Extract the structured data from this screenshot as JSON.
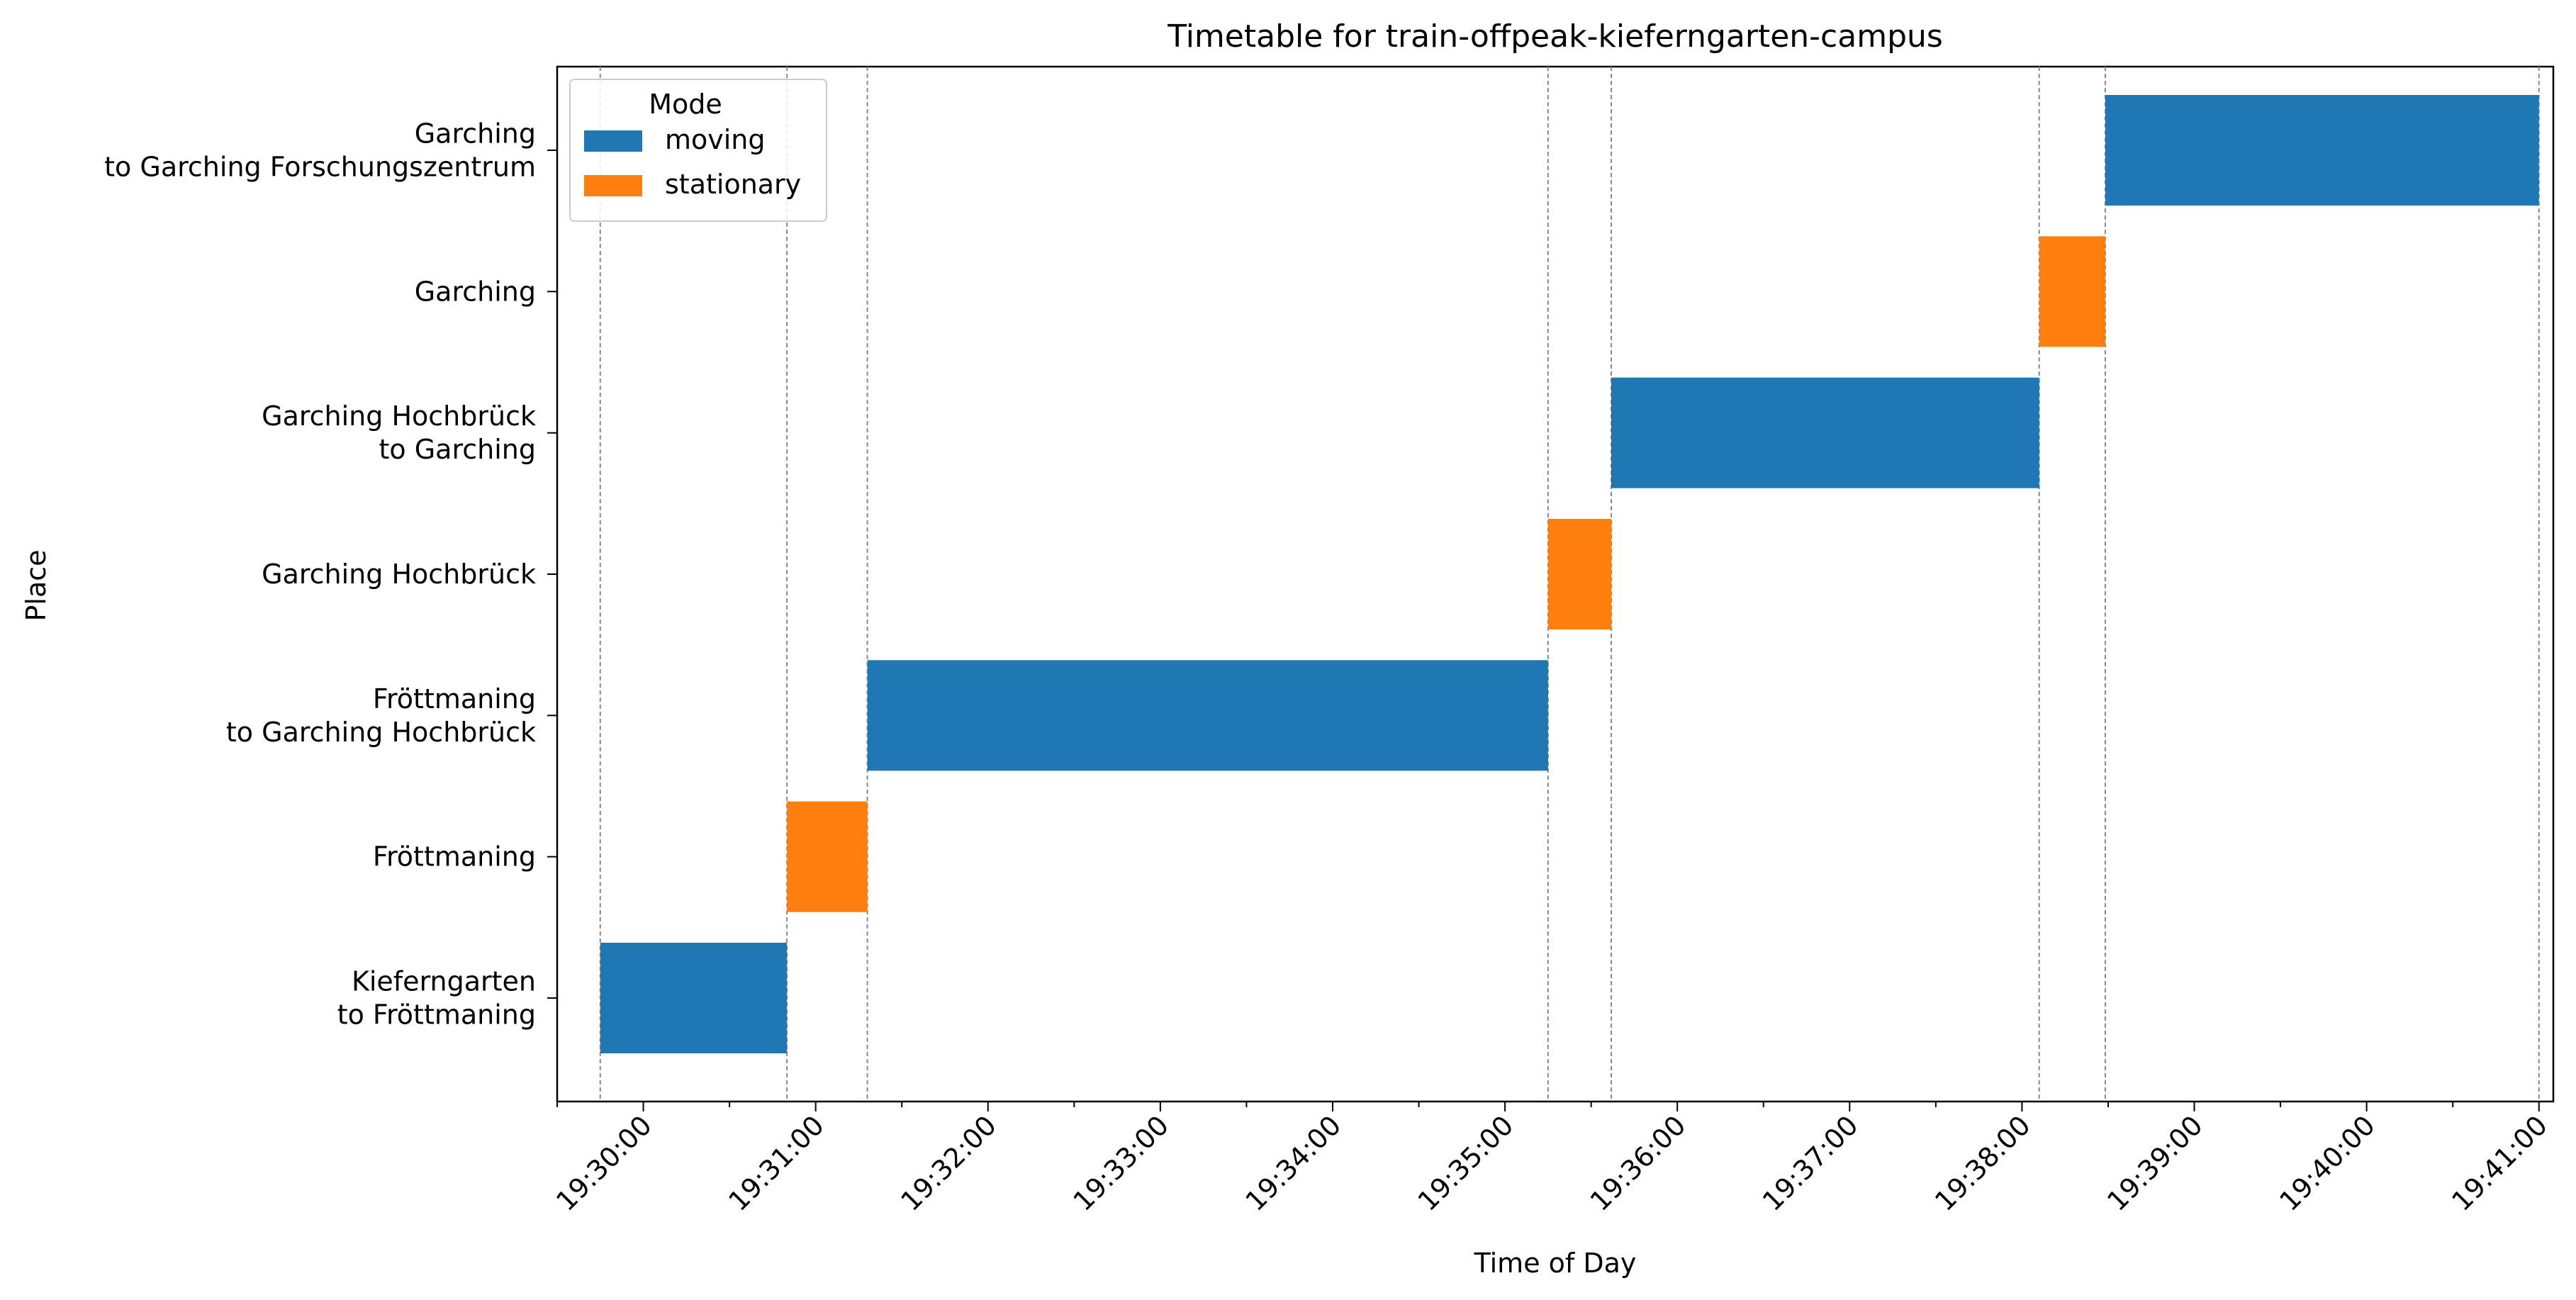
{
  "chart_data": {
    "type": "gantt",
    "title": "Timetable for train-offpeak-kieferngarten-campus",
    "xlabel": "Time of Day",
    "ylabel": "Place",
    "xlim": [
      "19:29:30",
      "19:41:05"
    ],
    "x_ticks": [
      "19:30:00",
      "19:31:00",
      "19:32:00",
      "19:33:00",
      "19:34:00",
      "19:35:00",
      "19:36:00",
      "19:37:00",
      "19:38:00",
      "19:39:00",
      "19:40:00",
      "19:41:00"
    ],
    "categories": [
      "Kieferngarten\nto Fröttmaning",
      "Fröttmaning",
      "Fröttmaning\nto Garching Hochbrück",
      "Garching Hochbrück",
      "Garching Hochbrück\nto Garching",
      "Garching",
      "Garching\nto Garching Forschungszentrum"
    ],
    "legend": {
      "title": "Mode",
      "placement": "upper-left",
      "entries": [
        {
          "name": "moving",
          "color": "#1f77b4"
        },
        {
          "name": "stationary",
          "color": "#ff7f0e"
        }
      ]
    },
    "bars": [
      {
        "place": "Kieferngarten\nto Fröttmaning",
        "mode": "moving",
        "start": "19:29:45",
        "end": "19:30:50"
      },
      {
        "place": "Fröttmaning",
        "mode": "stationary",
        "start": "19:30:50",
        "end": "19:31:18"
      },
      {
        "place": "Fröttmaning\nto Garching Hochbrück",
        "mode": "moving",
        "start": "19:31:18",
        "end": "19:35:15"
      },
      {
        "place": "Garching Hochbrück",
        "mode": "stationary",
        "start": "19:35:15",
        "end": "19:35:37"
      },
      {
        "place": "Garching Hochbrück\nto Garching",
        "mode": "moving",
        "start": "19:35:37",
        "end": "19:38:06"
      },
      {
        "place": "Garching",
        "mode": "stationary",
        "start": "19:38:06",
        "end": "19:38:29"
      },
      {
        "place": "Garching\nto Garching Forschungszentrum",
        "mode": "moving",
        "start": "19:38:29",
        "end": "19:41:00"
      }
    ],
    "vertical_guides": [
      "19:29:45",
      "19:30:50",
      "19:31:18",
      "19:35:15",
      "19:35:37",
      "19:38:06",
      "19:38:29",
      "19:41:00"
    ],
    "grid": false
  }
}
